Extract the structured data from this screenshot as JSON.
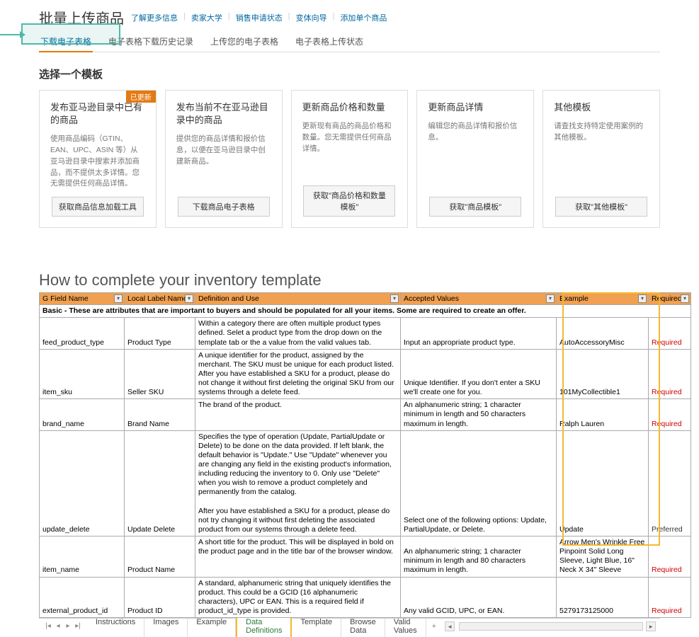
{
  "header": {
    "title": "批量上传商品",
    "links": [
      "了解更多信息",
      "卖家大学",
      "销售申请状态",
      "变体向导",
      "添加单个商品"
    ]
  },
  "tabs": [
    "下载电子表格",
    "电子表格下载历史记录",
    "上传您的电子表格",
    "电子表格上传状态"
  ],
  "section_title": "选择一个模板",
  "cards": [
    {
      "title": "发布亚马逊目录中已有的商品",
      "desc": "使用商品编码（GTIN、EAN、UPC、ASIN 等）从亚马逊目录中搜索并添加商品，而不提供太多详情。您无需提供任何商品详情。",
      "btn": "获取商品信息加载工具",
      "badge": "已更新"
    },
    {
      "title": "发布当前不在亚马逊目录中的商品",
      "desc": "提供您的商品详情和报价信息，以便在亚马逊目录中创建新商品。",
      "btn": "下载商品电子表格"
    },
    {
      "title": "更新商品价格和数量",
      "desc": "更新现有商品的商品价格和数量。您无需提供任何商品详情。",
      "btn": "获取\"商品价格和数量模板\""
    },
    {
      "title": "更新商品详情",
      "desc": "编辑您的商品详情和报价信息。",
      "btn": "获取\"商品模板\""
    },
    {
      "title": "其他模板",
      "desc": "请查找支持特定使用案例的其他模板。",
      "btn": "获取\"其他模板\""
    }
  ],
  "sheet": {
    "title": "How to complete your inventory template",
    "columns": [
      "G Field Name",
      "Local Label Name",
      "Definition and Use",
      "Accepted Values",
      "Example",
      "Required?"
    ],
    "section_header": "Basic - These are attributes that are important to buyers and should be populated for all your items. Some are required to create an offer.",
    "rows": [
      {
        "field": "feed_product_type",
        "label": "Product Type",
        "def": "Within a category there are often multiple product types defined.  Selet a product type from the drop down on the template tab or the a value from the valid values tab.",
        "acc": "Input an appropriate product type.",
        "ex": "AutoAccessoryMisc",
        "req": "Required"
      },
      {
        "field": "item_sku",
        "label": "Seller SKU",
        "def": "A unique identifier for the product, assigned by the merchant.  The SKU must be unique for each product listed.  After you have established a SKU for a product, please do not change it without first deleting the original SKU from our systems through a delete feed.",
        "acc": "Unique Identifier.  If you don't enter a SKU we'll create one for you.",
        "ex": "101MyCollectible1",
        "req": "Required"
      },
      {
        "field": "brand_name",
        "label": "Brand Name",
        "def": "The brand of the product.",
        "acc": "An alphanumeric string; 1 character minimum in length and 50 characters maximum in length.",
        "ex": "Ralph Lauren",
        "req": "Required"
      },
      {
        "field": "update_delete",
        "label": "Update Delete",
        "def": "Specifies the type of operation (Update, PartialUpdate or Delete) to be done on the data provided. If left blank, the default behavior is \"Update.\" Use \"Update\" whenever you are changing any field in the existing product's information, including reducing the inventory to 0.  Only use \"Delete\" when you wish to remove a product completely and permanently from the catalog.\n\nAfter you have established a SKU for a product, please do not try changing it without first deleting the associated product from our systems through a delete feed.",
        "acc": "Select one of the following options: Update, PartialUpdate, or Delete.",
        "ex": "Update",
        "req": "Preferred"
      },
      {
        "field": "item_name",
        "label": "Product Name",
        "def": "A short title for the product. This will be displayed in bold on the product page and in the title bar of the browser window.",
        "acc": "An alphanumeric string; 1 character minimum in length and 80 characters maximum in length.",
        "ex": "Arrow Men's Wrinkle Free Pinpoint Solid Long Sleeve, Light Blue, 16\" Neck X 34\" Sleeve",
        "req": "Required"
      },
      {
        "field": "external_product_id",
        "label": "Product ID",
        "def": "A standard, alphanumeric string that uniquely identifies the product. This could be a GCID (16 alphanumeric characters), UPC or EAN. This is a required field if product_id_type is provided.",
        "acc": "Any valid GCID, UPC, or EAN.",
        "ex": "5279173125000",
        "req": "Required"
      }
    ],
    "tabs": [
      "Instructions",
      "Images",
      "Example",
      "Data Definitions",
      "Template",
      "Browse Data",
      "Valid Values"
    ]
  }
}
